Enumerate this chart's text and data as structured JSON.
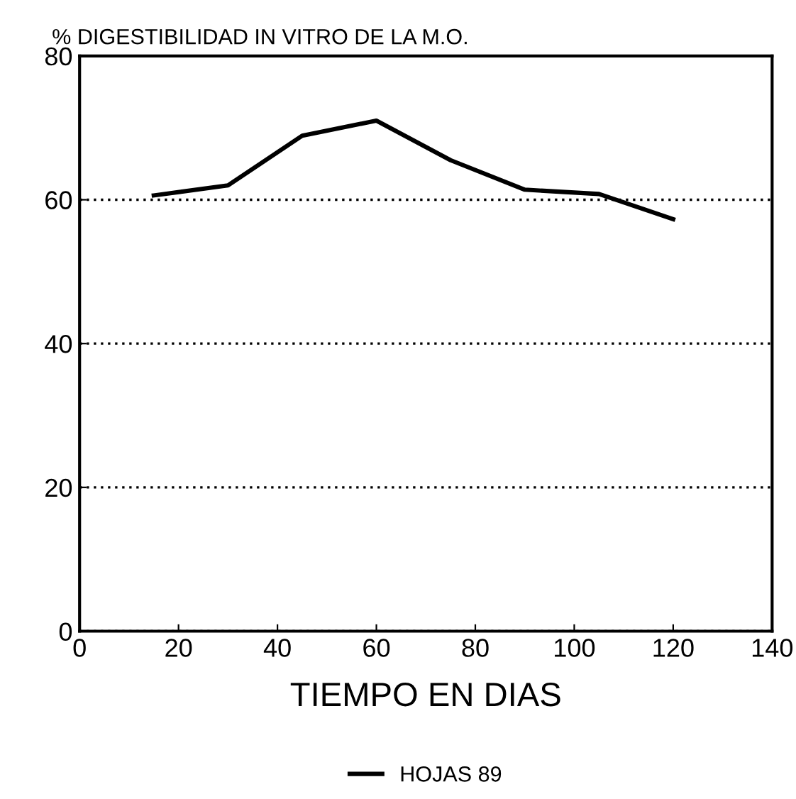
{
  "chart_data": {
    "type": "line",
    "title": "% DIGESTIBILIDAD IN VITRO DE LA M.O.",
    "xlabel": "TIEMPO EN DIAS",
    "series": [
      {
        "name": "HOJAS 89",
        "color": "#000000",
        "x": [
          15,
          30,
          45,
          60,
          75,
          90,
          105,
          120
        ],
        "values": [
          60.6,
          62,
          68.9,
          71,
          65.5,
          61.4,
          60.8,
          57.3
        ]
      }
    ],
    "xlim": [
      0,
      140
    ],
    "xticks": [
      0,
      20,
      40,
      60,
      80,
      100,
      120,
      140
    ],
    "ylim": [
      0,
      80
    ],
    "yticks": [
      0,
      20,
      40,
      60,
      80
    ],
    "grid": "y",
    "legend": "bottom",
    "line_style": "solid",
    "marker": "none"
  }
}
